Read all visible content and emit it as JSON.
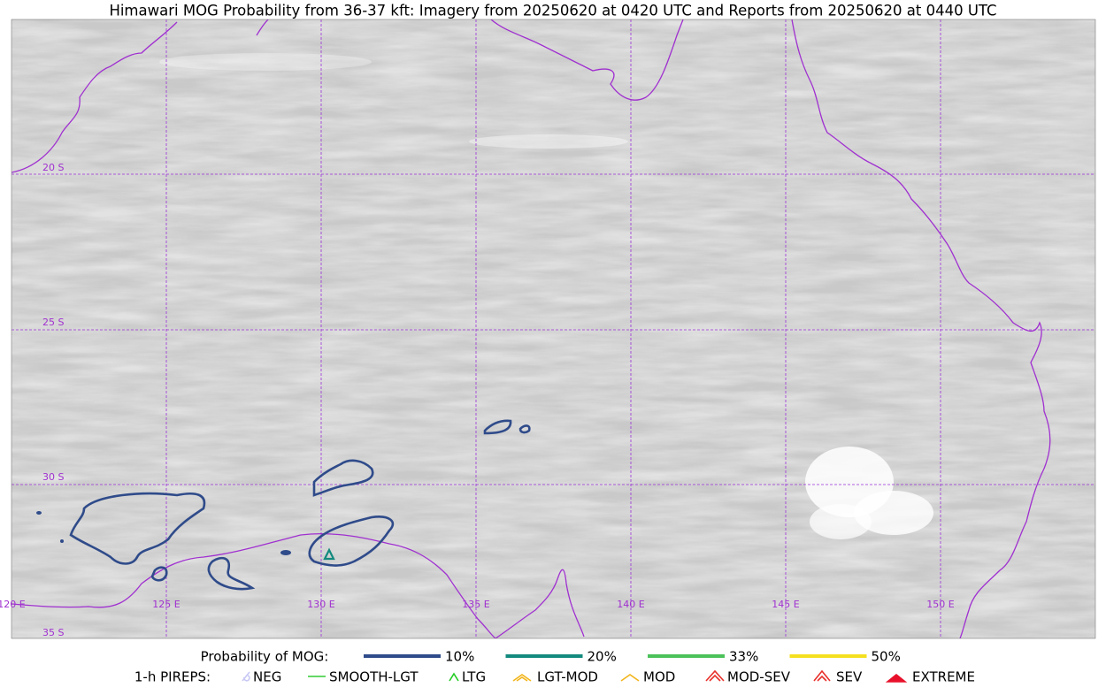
{
  "header": {
    "title": "Himawari MOG Probability from 36-37 kft: Imagery from 20250620 at 0420 UTC and Reports from 20250620 at 0440 UTC"
  },
  "map": {
    "latitude_labels": [
      "20 S",
      "25 S",
      "30 S",
      "35 S"
    ],
    "longitude_labels": [
      "120 E",
      "125 E",
      "130 E",
      "135 E",
      "140 E",
      "145 E",
      "150 E"
    ]
  },
  "legend": {
    "probability_title": "Probability of MOG:",
    "probability_items": [
      "10%",
      "20%",
      "33%",
      "50%"
    ],
    "pireps_title": "1-h PIREPS:",
    "pirep_items": [
      "NEG",
      "SMOOTH-LGT",
      "LTG",
      "LGT-MOD",
      "MOD",
      "MOD-SEV",
      "SEV",
      "EXTREME"
    ]
  }
}
